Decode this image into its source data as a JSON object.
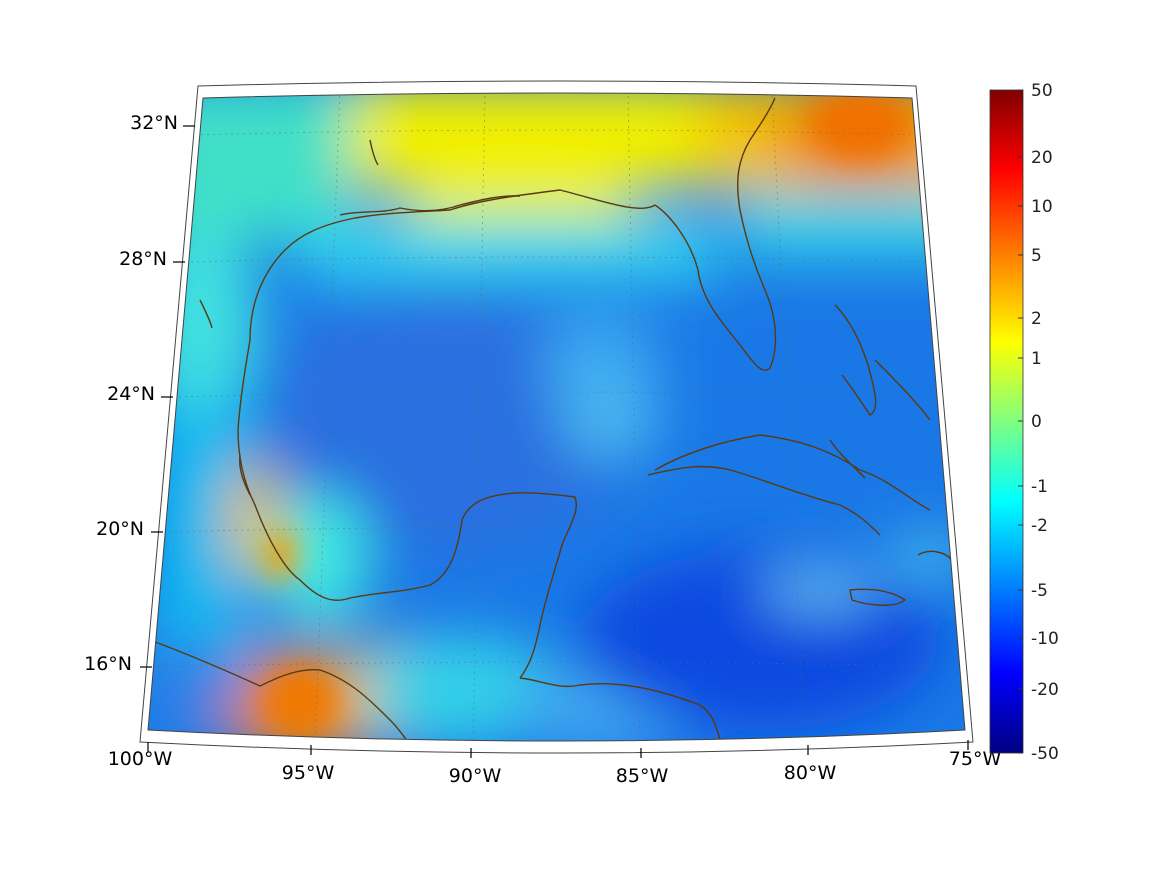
{
  "map": {
    "lat_labels": [
      "32°N",
      "28°N",
      "24°N",
      "20°N",
      "16°N"
    ],
    "lon_labels": [
      "100°W",
      "95°W",
      "90°W",
      "85°W",
      "80°W",
      "75°W"
    ],
    "coastline_color": "#5a3a12",
    "grid_color": "#777777"
  },
  "colorbar": {
    "ticks": [
      "50",
      "20",
      "10",
      "5",
      "2",
      "1",
      "0",
      "-1",
      "-2",
      "-5",
      "-10",
      "-20",
      "-50"
    ],
    "colors": [
      "#800000",
      "#ff0000",
      "#ff8000",
      "#ffff00",
      "#80ff80",
      "#00ffff",
      "#0080ff",
      "#0000ff",
      "#000080"
    ]
  }
}
